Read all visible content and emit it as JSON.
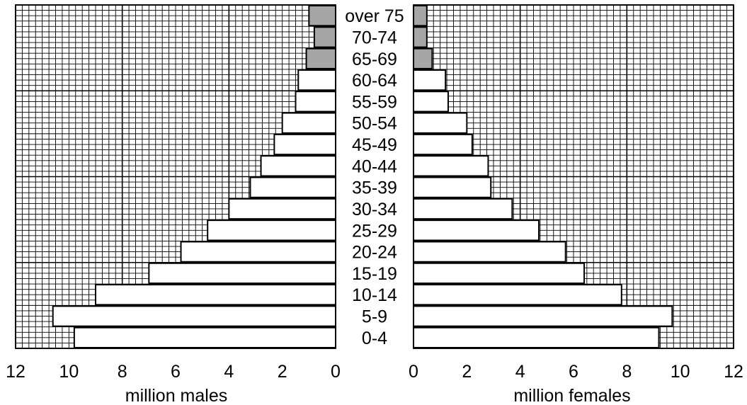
{
  "chart_data": {
    "type": "bar",
    "orientation": "horizontal",
    "layout": "population-pyramid",
    "categories": [
      "over 75",
      "70-74",
      "65-69",
      "60-64",
      "55-59",
      "50-54",
      "45-49",
      "40-44",
      "35-39",
      "30-34",
      "25-29",
      "20-24",
      "15-19",
      "10-14",
      "5-9",
      "0-4"
    ],
    "series": [
      {
        "name": "males",
        "side": "left",
        "values": [
          1.0,
          0.8,
          1.1,
          1.4,
          1.5,
          2.0,
          2.3,
          2.8,
          3.2,
          4.0,
          4.8,
          5.8,
          7.0,
          9.0,
          10.6,
          9.8
        ]
      },
      {
        "name": "females",
        "side": "right",
        "values": [
          0.5,
          0.5,
          0.7,
          1.2,
          1.3,
          2.0,
          2.2,
          2.8,
          2.9,
          3.7,
          4.7,
          5.7,
          6.4,
          7.8,
          9.7,
          9.2
        ]
      }
    ],
    "shaded_categories": [
      "over 75",
      "70-74",
      "65-69"
    ],
    "xlim": [
      0,
      12
    ],
    "x_ticks_left": [
      "12",
      "10",
      "8",
      "6",
      "4",
      "2",
      "0"
    ],
    "x_ticks_right": [
      "0",
      "2",
      "4",
      "6",
      "8",
      "10",
      "12"
    ],
    "xlabel_left": "million males",
    "xlabel_right": "million females",
    "grid": true,
    "colors": {
      "shaded": "#a6a6a6",
      "bar": "#ffffff",
      "line": "#000000"
    }
  }
}
